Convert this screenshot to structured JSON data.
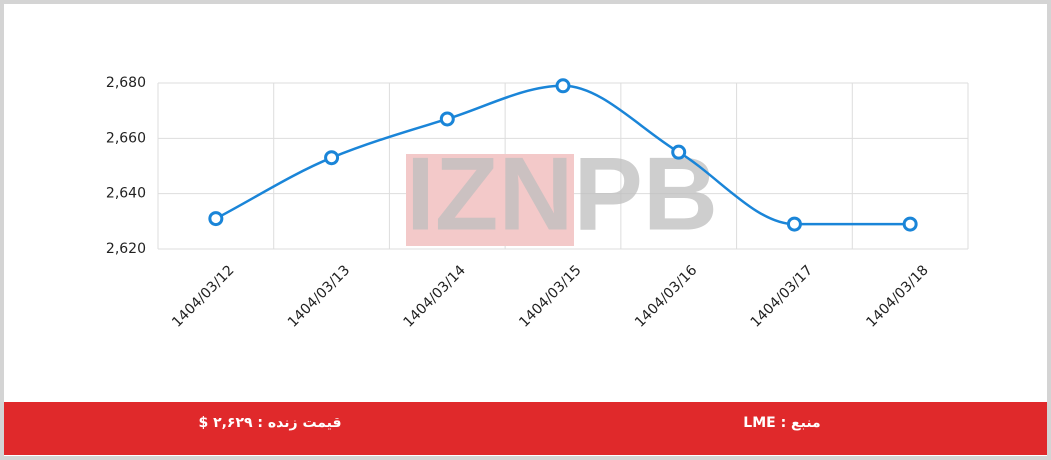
{
  "chart_data": {
    "type": "line",
    "categories": [
      "1404/03/12",
      "1404/03/13",
      "1404/03/14",
      "1404/03/15",
      "1404/03/16",
      "1404/03/17",
      "1404/03/18"
    ],
    "series": [
      {
        "name": null,
        "color": "#1a85d8",
        "values": [
          2631,
          2653,
          2667,
          2679,
          2655,
          2629,
          2629
        ]
      }
    ],
    "ylim": [
      2620,
      2680
    ],
    "yticks": [
      {
        "value": 2620,
        "label": "2,620"
      },
      {
        "value": 2640,
        "label": "2,640"
      },
      {
        "value": 2660,
        "label": "2,660"
      },
      {
        "value": 2680,
        "label": "2,680"
      }
    ],
    "grid": true,
    "watermark": "IZNPB"
  },
  "footer": {
    "price": "قیمت زنده : ۲,۶۲۹ $",
    "source": "منبع : LME"
  }
}
